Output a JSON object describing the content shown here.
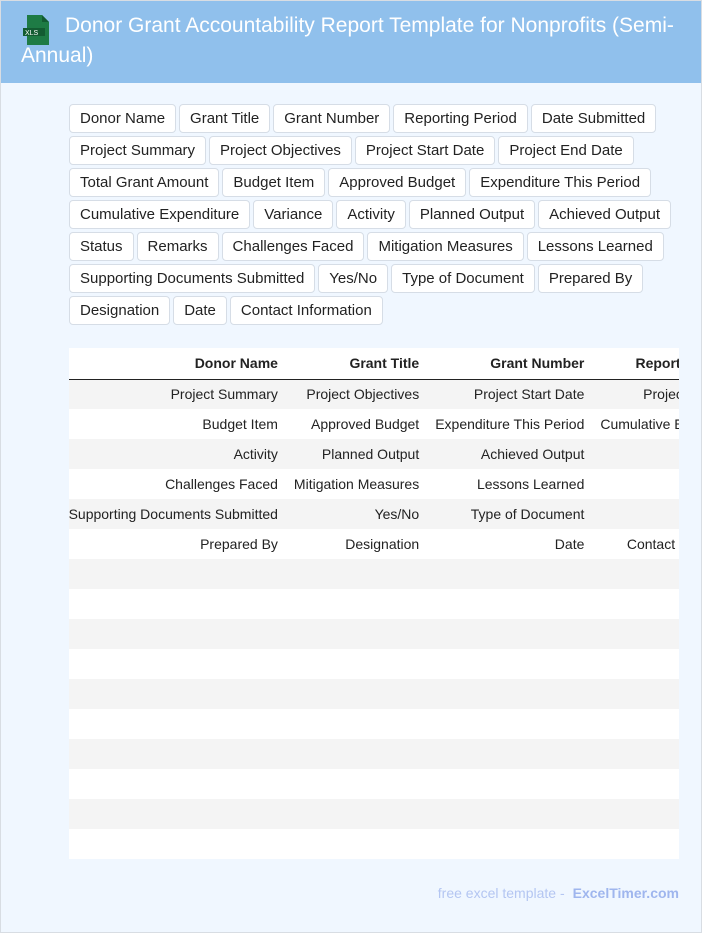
{
  "header": {
    "title": "Donor Grant Accountability Report Template for Nonprofits (Semi-Annual)",
    "icon": "xls-file-icon",
    "icon_label": "XLS"
  },
  "tags": [
    "Donor Name",
    "Grant Title",
    "Grant Number",
    "Reporting Period",
    "Date Submitted",
    "Project Summary",
    "Project Objectives",
    "Project Start Date",
    "Project End Date",
    "Total Grant Amount",
    "Budget Item",
    "Approved Budget",
    "Expenditure This Period",
    "Cumulative Expenditure",
    "Variance",
    "Activity",
    "Planned Output",
    "Achieved Output",
    "Status",
    "Remarks",
    "Challenges Faced",
    "Mitigation Measures",
    "Lessons Learned",
    "Supporting Documents Submitted",
    "Yes/No",
    "Type of Document",
    "Prepared By",
    "Designation",
    "Date",
    "Contact Information"
  ],
  "table": {
    "columns": [
      "Donor Name",
      "Grant Title",
      "Grant Number",
      "Reporting Period"
    ],
    "rows": [
      {
        "index": "0",
        "cells": [
          "Project Summary",
          "Project Objectives",
          "Project Start Date",
          "Project End Date"
        ]
      },
      {
        "index": "1",
        "cells": [
          "Budget Item",
          "Approved Budget",
          "Expenditure This Period",
          "Cumulative Expenditure"
        ]
      },
      {
        "index": "2",
        "cells": [
          "Activity",
          "Planned Output",
          "Achieved Output",
          ""
        ]
      },
      {
        "index": "3",
        "cells": [
          "Challenges Faced",
          "Mitigation Measures",
          "Lessons Learned",
          ""
        ]
      },
      {
        "index": "4",
        "cells": [
          "Supporting Documents Submitted",
          "Yes/No",
          "Type of Document",
          ""
        ]
      },
      {
        "index": "5",
        "cells": [
          "Prepared By",
          "Designation",
          "Date",
          "Contact Information"
        ]
      },
      {
        "index": "6",
        "cells": [
          "",
          "",
          "",
          ""
        ]
      },
      {
        "index": "7",
        "cells": [
          "",
          "",
          "",
          ""
        ]
      },
      {
        "index": "8",
        "cells": [
          "",
          "",
          "",
          ""
        ]
      },
      {
        "index": "9",
        "cells": [
          "",
          "",
          "",
          ""
        ]
      },
      {
        "index": "10",
        "cells": [
          "",
          "",
          "",
          ""
        ]
      },
      {
        "index": "11",
        "cells": [
          "",
          "",
          "",
          ""
        ]
      },
      {
        "index": "12",
        "cells": [
          "",
          "",
          "",
          ""
        ]
      },
      {
        "index": "13",
        "cells": [
          "",
          "",
          "",
          ""
        ]
      },
      {
        "index": "14",
        "cells": [
          "",
          "",
          "",
          ""
        ]
      },
      {
        "index": "15",
        "cells": [
          "",
          "",
          "",
          ""
        ]
      }
    ]
  },
  "footer": {
    "text": "free excel template -",
    "brand": "ExcelTimer.com"
  }
}
